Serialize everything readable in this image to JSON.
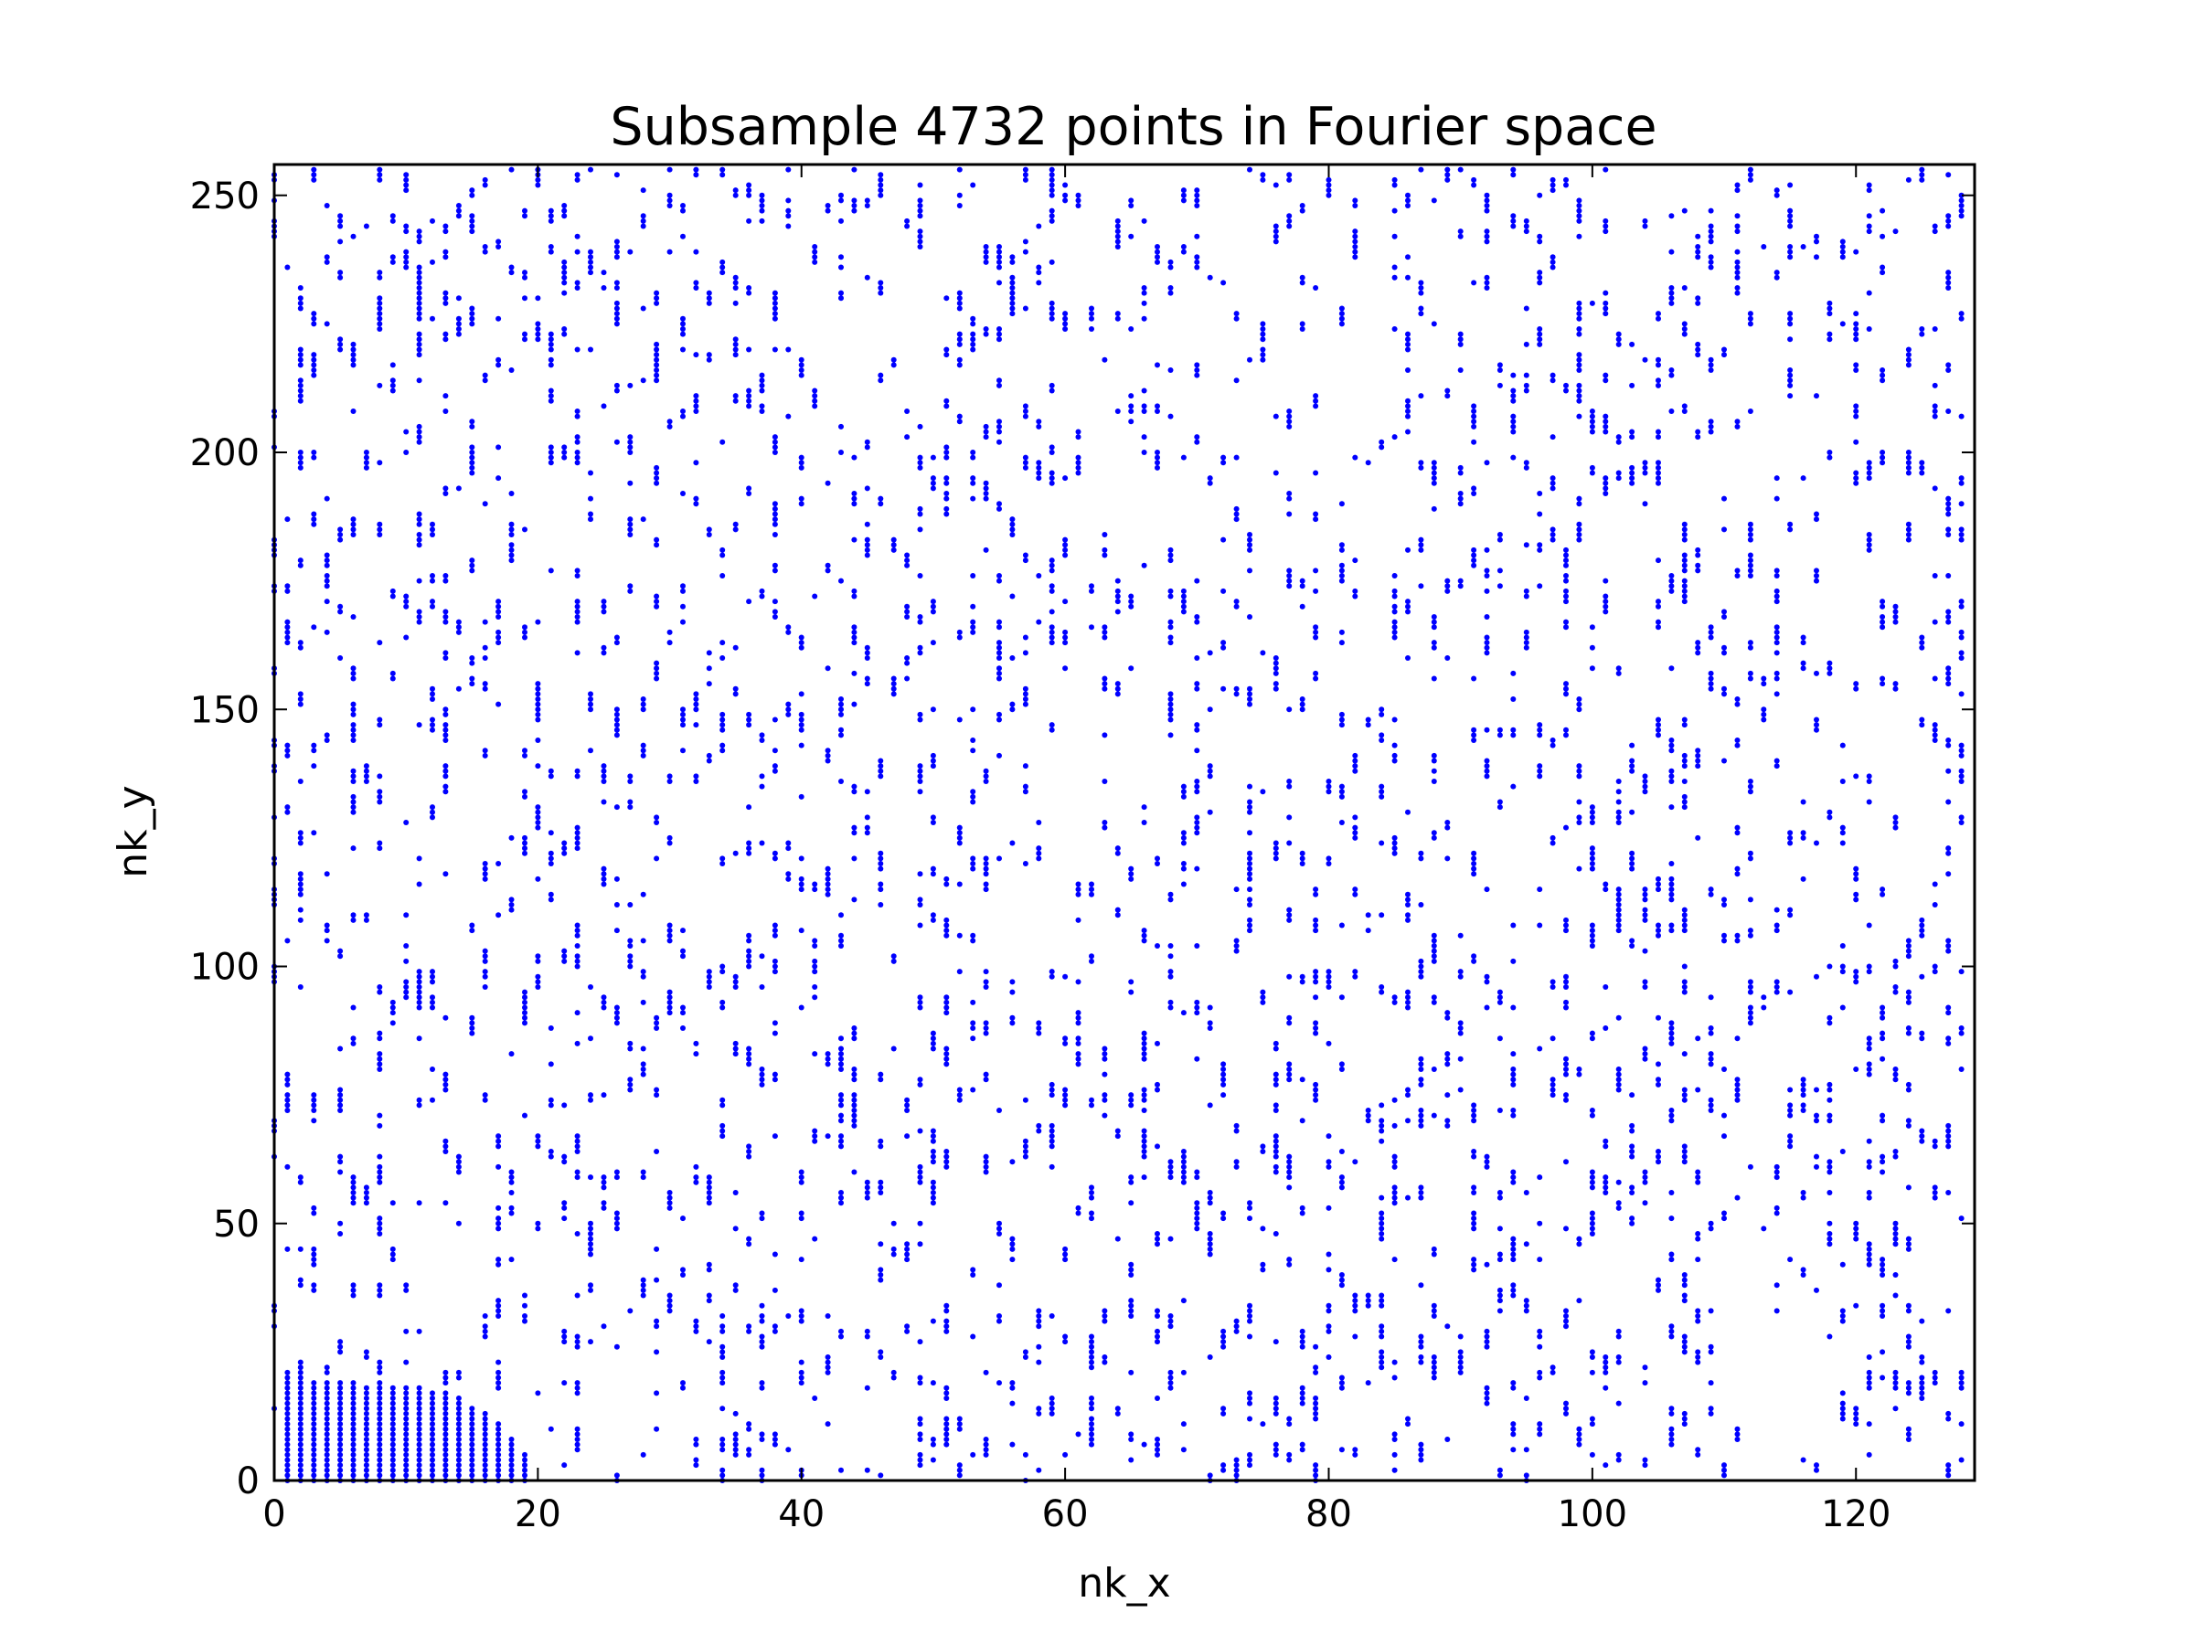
{
  "chart_data": {
    "type": "scatter",
    "title": "Subsample 4732 points in Fourier space",
    "xlabel": "nk_x",
    "ylabel": "nk_y",
    "xlim": [
      0,
      129
    ],
    "ylim": [
      0,
      256
    ],
    "x_ticks": [
      "0",
      "20",
      "40",
      "60",
      "80",
      "100",
      "120"
    ],
    "y_ticks": [
      "0",
      "50",
      "100",
      "150",
      "200",
      "250"
    ],
    "x_tick_values": [
      0,
      20,
      40,
      60,
      80,
      100,
      120
    ],
    "y_tick_values": [
      0,
      50,
      100,
      150,
      200,
      250
    ],
    "grid": false,
    "marker_color": "#0000ff",
    "series": [
      {
        "point_count": 4732,
        "dense_low_frequency_block": {
          "description": "fully sampled columns near origin",
          "columns": [
            {
              "x": 1,
              "y_max": 19
            },
            {
              "x": 2,
              "y_max": 19
            },
            {
              "x": 3,
              "y_max": 19
            },
            {
              "x": 4,
              "y_max": 19
            },
            {
              "x": 5,
              "y_max": 19
            },
            {
              "x": 6,
              "y_max": 19
            },
            {
              "x": 7,
              "y_max": 18
            },
            {
              "x": 8,
              "y_max": 18
            },
            {
              "x": 9,
              "y_max": 18
            },
            {
              "x": 10,
              "y_max": 18
            },
            {
              "x": 11,
              "y_max": 18
            },
            {
              "x": 12,
              "y_max": 17
            },
            {
              "x": 13,
              "y_max": 17
            },
            {
              "x": 14,
              "y_max": 16
            },
            {
              "x": 15,
              "y_max": 14
            },
            {
              "x": 16,
              "y_max": 13
            },
            {
              "x": 17,
              "y_max": 11
            },
            {
              "x": 18,
              "y_max": 8
            },
            {
              "x": 19,
              "y_max": 5
            }
          ]
        },
        "random_region": {
          "x_range": [
            0,
            128
          ],
          "y_range": [
            0,
            255
          ],
          "distribution": "uniform random subsample with vertical runs"
        }
      }
    ]
  }
}
